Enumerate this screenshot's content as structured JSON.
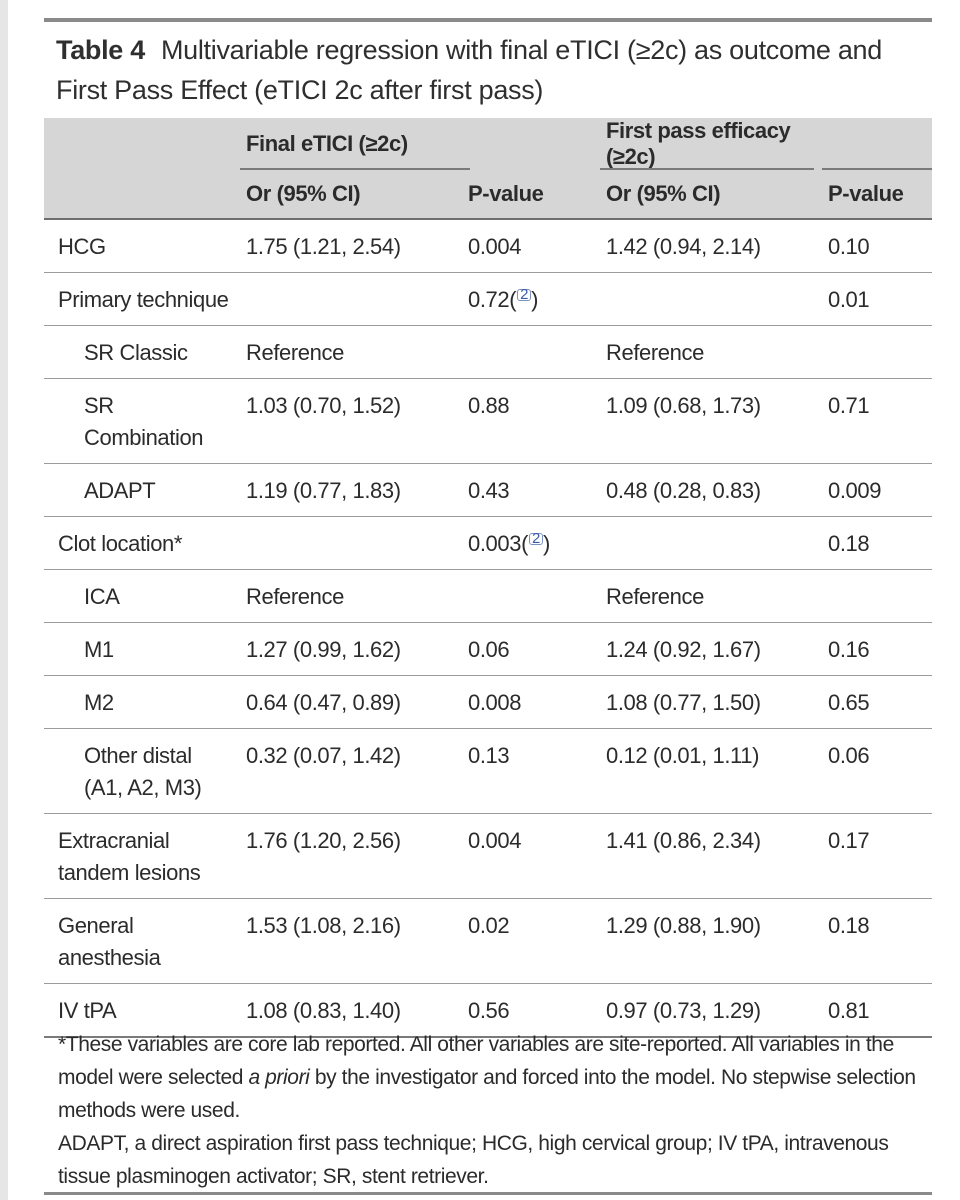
{
  "caption": {
    "label": "Table 4",
    "text": "Multivariable regression with final eTICI (≥2c) as outcome and First Pass Effect (eTICI 2c after first pass)"
  },
  "header": {
    "group1": "Final eTICI (≥2c)",
    "group2": "First pass efficacy (≥2c)",
    "or_label": "Or (95% CI)",
    "p_label": "P-value"
  },
  "footnote_ref": "2",
  "rows": [
    {
      "label": "HCG",
      "or1": "1.75 (1.21, 2.54)",
      "p1": "0.004",
      "or2": "1.42 (0.94, 2.14)",
      "p2": "0.10"
    },
    {
      "label": "Primary technique",
      "or1": "",
      "p1": "0.72",
      "or2": "",
      "p2": "0.01"
    },
    {
      "label": "SR Classic",
      "or1": "Reference",
      "p1": "",
      "or2": "Reference",
      "p2": ""
    },
    {
      "label": "SR Combination",
      "or1": "1.03 (0.70, 1.52)",
      "p1": "0.88",
      "or2": "1.09 (0.68, 1.73)",
      "p2": "0.71"
    },
    {
      "label": "ADAPT",
      "or1": "1.19 (0.77, 1.83)",
      "p1": "0.43",
      "or2": "0.48 (0.28, 0.83)",
      "p2": "0.009"
    },
    {
      "label": "Clot location*",
      "or1": "",
      "p1": "0.003",
      "or2": "",
      "p2": "0.18"
    },
    {
      "label": "ICA",
      "or1": "Reference",
      "p1": "",
      "or2": "Reference",
      "p2": ""
    },
    {
      "label": "M1",
      "or1": "1.27 (0.99, 1.62)",
      "p1": "0.06",
      "or2": "1.24 (0.92, 1.67)",
      "p2": "0.16"
    },
    {
      "label": "M2",
      "or1": "0.64 (0.47, 0.89)",
      "p1": "0.008",
      "or2": "1.08 (0.77, 1.50)",
      "p2": "0.65"
    },
    {
      "label": "Other distal (A1, A2, M3)",
      "or1": "0.32 (0.07, 1.42)",
      "p1": "0.13",
      "or2": "0.12 (0.01, 1.11)",
      "p2": "0.06"
    },
    {
      "label": "Extracranial tandem lesions",
      "or1": "1.76 (1.20, 2.56)",
      "p1": "0.004",
      "or2": "1.41 (0.86, 2.34)",
      "p2": "0.17"
    },
    {
      "label": "General anesthesia",
      "or1": "1.53 (1.08, 2.16)",
      "p1": "0.02",
      "or2": "1.29 (0.88, 1.90)",
      "p2": "0.18"
    },
    {
      "label": "IV tPA",
      "or1": "1.08 (0.83, 1.40)",
      "p1": "0.56",
      "or2": "0.97 (0.73, 1.29)",
      "p2": "0.81"
    }
  ],
  "footnotes": {
    "note1_a": "*These variables are core lab reported. All other variables are site-reported. All variables in the model were selected ",
    "note1_italic": "a priori",
    "note1_b": " by the investigator and forced into the model. No stepwise selection methods were used.",
    "note2": "ADAPT, a direct aspiration first pass technique; HCG, high cervical group; IV tPA, intravenous tissue plasminogen activator; SR, stent retriever."
  }
}
